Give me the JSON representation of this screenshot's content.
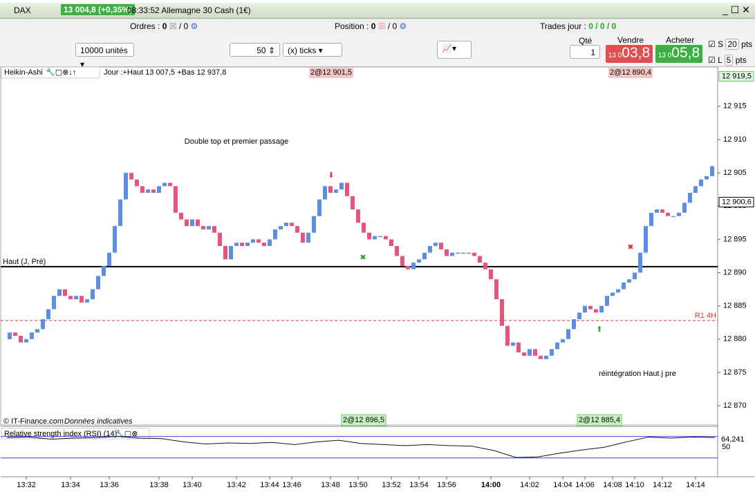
{
  "window": {
    "symbol": "DAX",
    "quote": "13 004,8 (+0,35%)",
    "title": "08:33:52 Allemagne 30 Cash (1€)"
  },
  "toolbar": {
    "orders_label": "Ordres :",
    "orders": "0",
    "orders_total": "/ 0",
    "position_label": "Position :",
    "position": "0",
    "position_total": "/ 0",
    "trades_label": "Trades jour :",
    "trades": "0 / 0 / 0"
  },
  "order_panel": {
    "units": "10000 unités",
    "ticks": "50",
    "ticks_unit": "(x) ticks",
    "qty_label": "Qté",
    "qty": "1",
    "sell_label": "Vendre",
    "sell_prefix": "13 0",
    "sell_main": "03,8",
    "buy_label": "Acheter",
    "buy_prefix": "13 0",
    "buy_main": "05,8",
    "stop_label": "S",
    "stop": "20",
    "limit_label": "L",
    "limit": "5",
    "pts": "pts"
  },
  "chart": {
    "type": "candlestick",
    "name": "Heikin-Ashi",
    "info": "Jour :+Haut 13 007,5 +Bas 12 937,8",
    "tags": [
      "2@12 901,5",
      "2@12 890,4",
      "2@12 896,5",
      "2@12 885,4"
    ],
    "annotations": [
      "Double top et premier passage",
      "réintégration Haut j pre"
    ],
    "copyright": "© IT-Finance.com",
    "disclaimer": "Données indicatives",
    "up_color": "#5b8fe6",
    "down_color": "#e8527c",
    "ylim": [
      12867.1,
      12920.8
    ],
    "yticks": [
      {
        "value": 12870,
        "label": "12 870"
      },
      {
        "value": 12875,
        "label": "12 875"
      },
      {
        "value": 12880,
        "label": "12 880"
      },
      {
        "value": 12885,
        "label": "12 885"
      },
      {
        "value": 12890,
        "label": "12 890"
      },
      {
        "value": 12895,
        "label": "12 895"
      },
      {
        "value": 12900,
        "label": "12 900"
      },
      {
        "value": 12905,
        "label": "12 905"
      },
      {
        "value": 12910,
        "label": "12 910"
      },
      {
        "value": 12915,
        "label": "12 915"
      }
    ],
    "price_labels": [
      {
        "value": 12919.5,
        "label": "12 919,5"
      },
      {
        "value": 12900.6,
        "label": "12 900,6"
      }
    ],
    "levels": [
      {
        "label": "Haut (J, Pré)",
        "value": 12890.9,
        "color": "#000000"
      },
      {
        "label": "R1 4H",
        "value": 12882.8,
        "color": "#e03030"
      }
    ],
    "first_open": 12880,
    "close": [
      12881,
      12880.5,
      12879.5,
      12880,
      12881,
      12881.5,
      12883,
      12884.5,
      12886.5,
      12887.5,
      12886.5,
      12886,
      12886.5,
      12885.5,
      12886,
      12887.5,
      12889.5,
      12891,
      12893,
      12897,
      12901,
      12905,
      12904,
      12903,
      12902,
      12902.5,
      12902,
      12903,
      12903.5,
      12903,
      12899,
      12898,
      12897,
      12898,
      12897,
      12896.5,
      12897,
      12896,
      12894,
      12892,
      12894,
      12894.5,
      12894,
      12894.5,
      12895,
      12894.5,
      12894,
      12895,
      12896.5,
      12897,
      12897.5,
      12897,
      12896,
      12894.5,
      12896,
      12898.5,
      12901,
      12903,
      12902,
      12902.5,
      12903.5,
      12901.5,
      12899.5,
      12897.5,
      12896,
      12895,
      12895.5,
      12895.5,
      12895,
      12894,
      12892.5,
      12891,
      12890.5,
      12891.5,
      12892,
      12893,
      12894,
      12894.5,
      12893.5,
      12892.5,
      12893,
      12893,
      12893,
      12893,
      12892.5,
      12891.5,
      12890.5,
      12889,
      12886,
      12882,
      12879,
      12879.5,
      12878,
      12877.5,
      12878.5,
      12877.5,
      12877,
      12877.5,
      12878.5,
      12879.5,
      12880,
      12881.5,
      12883,
      12884,
      12885,
      12884.5,
      12884,
      12885,
      12886.5,
      12887,
      12887.5,
      12888.5,
      12889,
      12890,
      12893,
      12897,
      12899,
      12899.5,
      12899,
      12898.5,
      12898.5,
      12899,
      12900.5,
      12902,
      12903,
      12904,
      12904.5,
      12906
    ],
    "times": [
      null,
      null,
      null,
      "13:32",
      null,
      null,
      null,
      null,
      null,
      null,
      null,
      "13:34",
      null,
      null,
      null,
      null,
      null,
      null,
      "13:36",
      null,
      null,
      null,
      null,
      null,
      null,
      null,
      null,
      "13:38",
      null,
      null,
      null,
      null,
      null,
      "13:40",
      null,
      null,
      null,
      null,
      null,
      null,
      null,
      "13:42",
      null,
      null,
      null,
      null,
      null,
      "13:44",
      null,
      null,
      null,
      "13:46",
      null,
      null,
      null,
      null,
      null,
      null,
      "13:48",
      null,
      null,
      null,
      null,
      "13:50",
      null,
      null,
      null,
      null,
      null,
      "13:52",
      null,
      null,
      null,
      null,
      "13:54",
      null,
      null,
      null,
      null,
      "13:56",
      null,
      null,
      null,
      null,
      null,
      null,
      null,
      "14:00",
      null,
      null,
      null,
      null,
      null,
      null,
      "14:02",
      null,
      null,
      null,
      null,
      null,
      "14:04",
      null,
      null,
      null,
      "14:06",
      null,
      null,
      null,
      null,
      "14:08",
      null,
      null,
      null,
      "14:10",
      null,
      null,
      null,
      null,
      "14:12",
      null,
      null,
      null,
      null,
      null,
      "14:14",
      null,
      null,
      null
    ],
    "rsi": {
      "title": "Relative strength index (RSI) (14)",
      "ylim": [
        -5,
        85
      ],
      "levels": [
        70,
        30
      ],
      "yticks": [
        50
      ],
      "last": {
        "value": 64.241,
        "label": "64,241"
      },
      "values": [
        68,
        69,
        65,
        67,
        68,
        70,
        67,
        66,
        60,
        56,
        58,
        57,
        59,
        55,
        60,
        63,
        57,
        55,
        53,
        55,
        53,
        52,
        44,
        31,
        32,
        39,
        45,
        50,
        60,
        69,
        67,
        69,
        68
      ]
    }
  }
}
